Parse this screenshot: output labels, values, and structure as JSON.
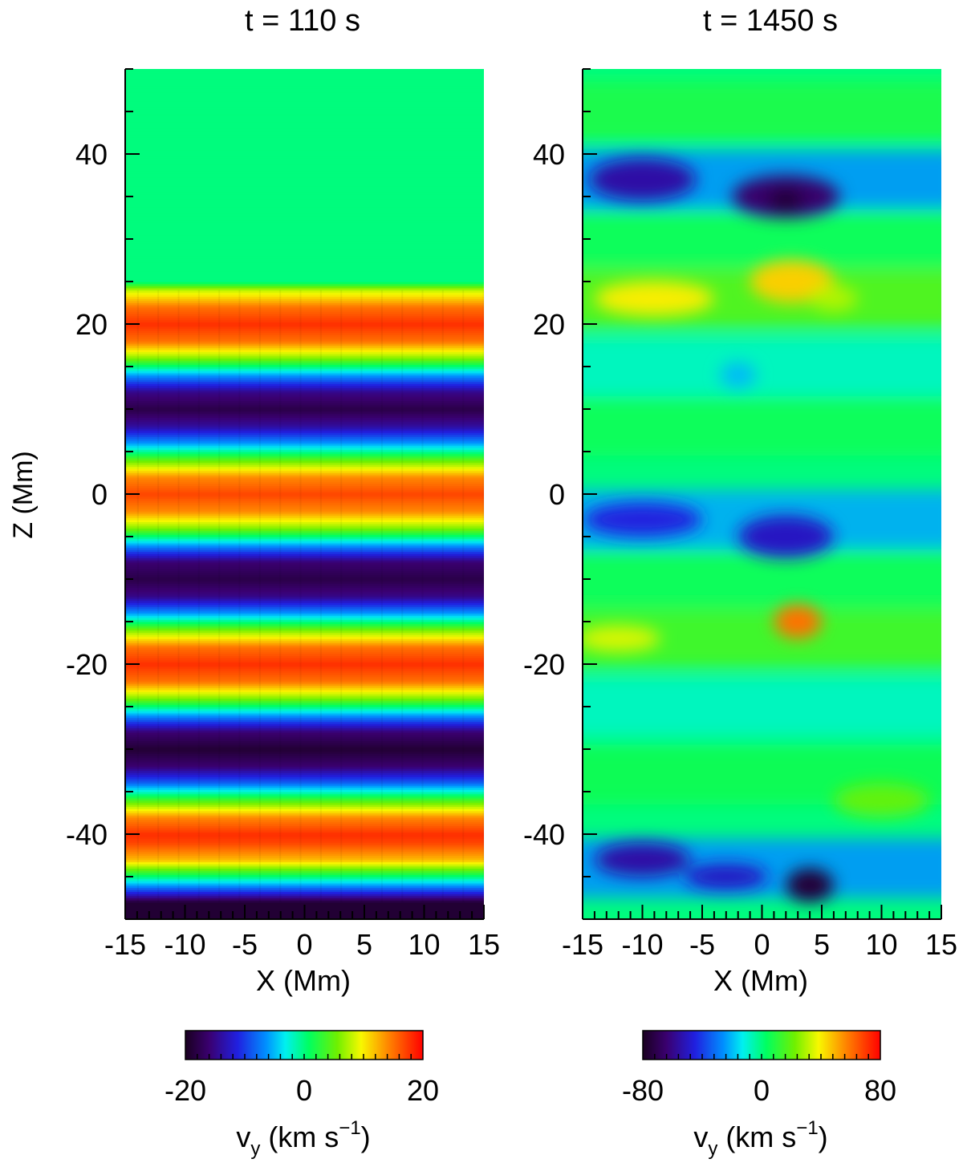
{
  "chart_data": [
    {
      "type": "heatmap",
      "title": "t = 110 s",
      "xlabel": "X (Mm)",
      "ylabel": "Z (Mm)",
      "xlim": [
        -15,
        15
      ],
      "ylim": [
        -50,
        50
      ],
      "xticks": [
        -15,
        -10,
        -5,
        0,
        5,
        10,
        15
      ],
      "xtick_labels": [
        "-15",
        "-10",
        "-5",
        "0",
        "5",
        "10",
        "15"
      ],
      "yticks": [
        -40,
        -20,
        0,
        20,
        40
      ],
      "ytick_labels": [
        "-40",
        "-20",
        "0",
        "20",
        "40"
      ],
      "z_profile": {
        "description_z": [
          -50,
          -48,
          -47,
          -45,
          -43,
          -41,
          -40,
          -38,
          -36,
          -34,
          -32,
          -30,
          -28,
          -26,
          -24,
          -22,
          -20,
          -18,
          -16,
          -14,
          -12,
          -10,
          -8,
          -6,
          -4,
          -2,
          0,
          2,
          4,
          6,
          8,
          10,
          12,
          14,
          16,
          18,
          20,
          22,
          24,
          25,
          50
        ],
        "vy": [
          -19,
          -19,
          -12,
          0,
          12,
          17,
          18,
          14,
          4,
          -8,
          -16,
          -19,
          -16,
          -6,
          6,
          15,
          18,
          15,
          6,
          -6,
          -15,
          -18,
          -16,
          -6,
          6,
          14,
          17,
          14,
          5,
          -6,
          -14,
          -18,
          -15,
          -6,
          6,
          15,
          18,
          15,
          8,
          0,
          0
        ]
      },
      "colorbar": {
        "label": "vy (km s^-1)",
        "range": [
          -20,
          20
        ],
        "tick_labels": [
          "-20",
          "0",
          "20"
        ],
        "ticks": [
          -20,
          0,
          20
        ]
      }
    },
    {
      "type": "heatmap",
      "title": "t = 1450 s",
      "xlabel": "X (Mm)",
      "xlim": [
        -15,
        15
      ],
      "ylim": [
        -50,
        50
      ],
      "xticks": [
        -15,
        -10,
        -5,
        0,
        5,
        10,
        15
      ],
      "xtick_labels": [
        "-15",
        "-10",
        "-5",
        "0",
        "5",
        "10",
        "15"
      ],
      "yticks": [
        -40,
        -20,
        0,
        20,
        40
      ],
      "ytick_labels": [
        "-40",
        "-20",
        "0",
        "20",
        "40"
      ],
      "features": [
        {
          "x": -10,
          "z": 37,
          "vy": -55,
          "w": 9,
          "h": 5
        },
        {
          "x": 2,
          "z": 35,
          "vy": -65,
          "w": 9,
          "h": 5
        },
        {
          "x": 2,
          "z": 34.5,
          "vy": -75,
          "w": 3,
          "h": 3
        },
        {
          "x": -9,
          "z": 23,
          "vy": 40,
          "w": 10,
          "h": 4
        },
        {
          "x": 2.5,
          "z": 25,
          "vy": 45,
          "w": 7,
          "h": 5
        },
        {
          "x": 6,
          "z": 23,
          "vy": 30,
          "w": 4,
          "h": 3
        },
        {
          "x": -10,
          "z": -3,
          "vy": -45,
          "w": 10,
          "h": 4
        },
        {
          "x": 2,
          "z": -5,
          "vy": -50,
          "w": 8,
          "h": 5
        },
        {
          "x": -12,
          "z": -17,
          "vy": 35,
          "w": 7,
          "h": 3
        },
        {
          "x": 3,
          "z": -15,
          "vy": 60,
          "w": 4,
          "h": 4
        },
        {
          "x": -10,
          "z": -43,
          "vy": -55,
          "w": 8,
          "h": 4
        },
        {
          "x": -3,
          "z": -45,
          "vy": -50,
          "w": 7,
          "h": 3
        },
        {
          "x": 4,
          "z": -46,
          "vy": -75,
          "w": 4,
          "h": 4
        },
        {
          "x": -2,
          "z": 14,
          "vy": -20,
          "w": 3,
          "h": 3
        },
        {
          "x": 10,
          "z": -36,
          "vy": 20,
          "w": 8,
          "h": 4
        }
      ],
      "colorbar": {
        "label": "vy (km s^-1)",
        "range": [
          -80,
          80
        ],
        "tick_labels": [
          "-80",
          "0",
          "80"
        ],
        "ticks": [
          -80,
          0,
          80
        ]
      }
    }
  ]
}
